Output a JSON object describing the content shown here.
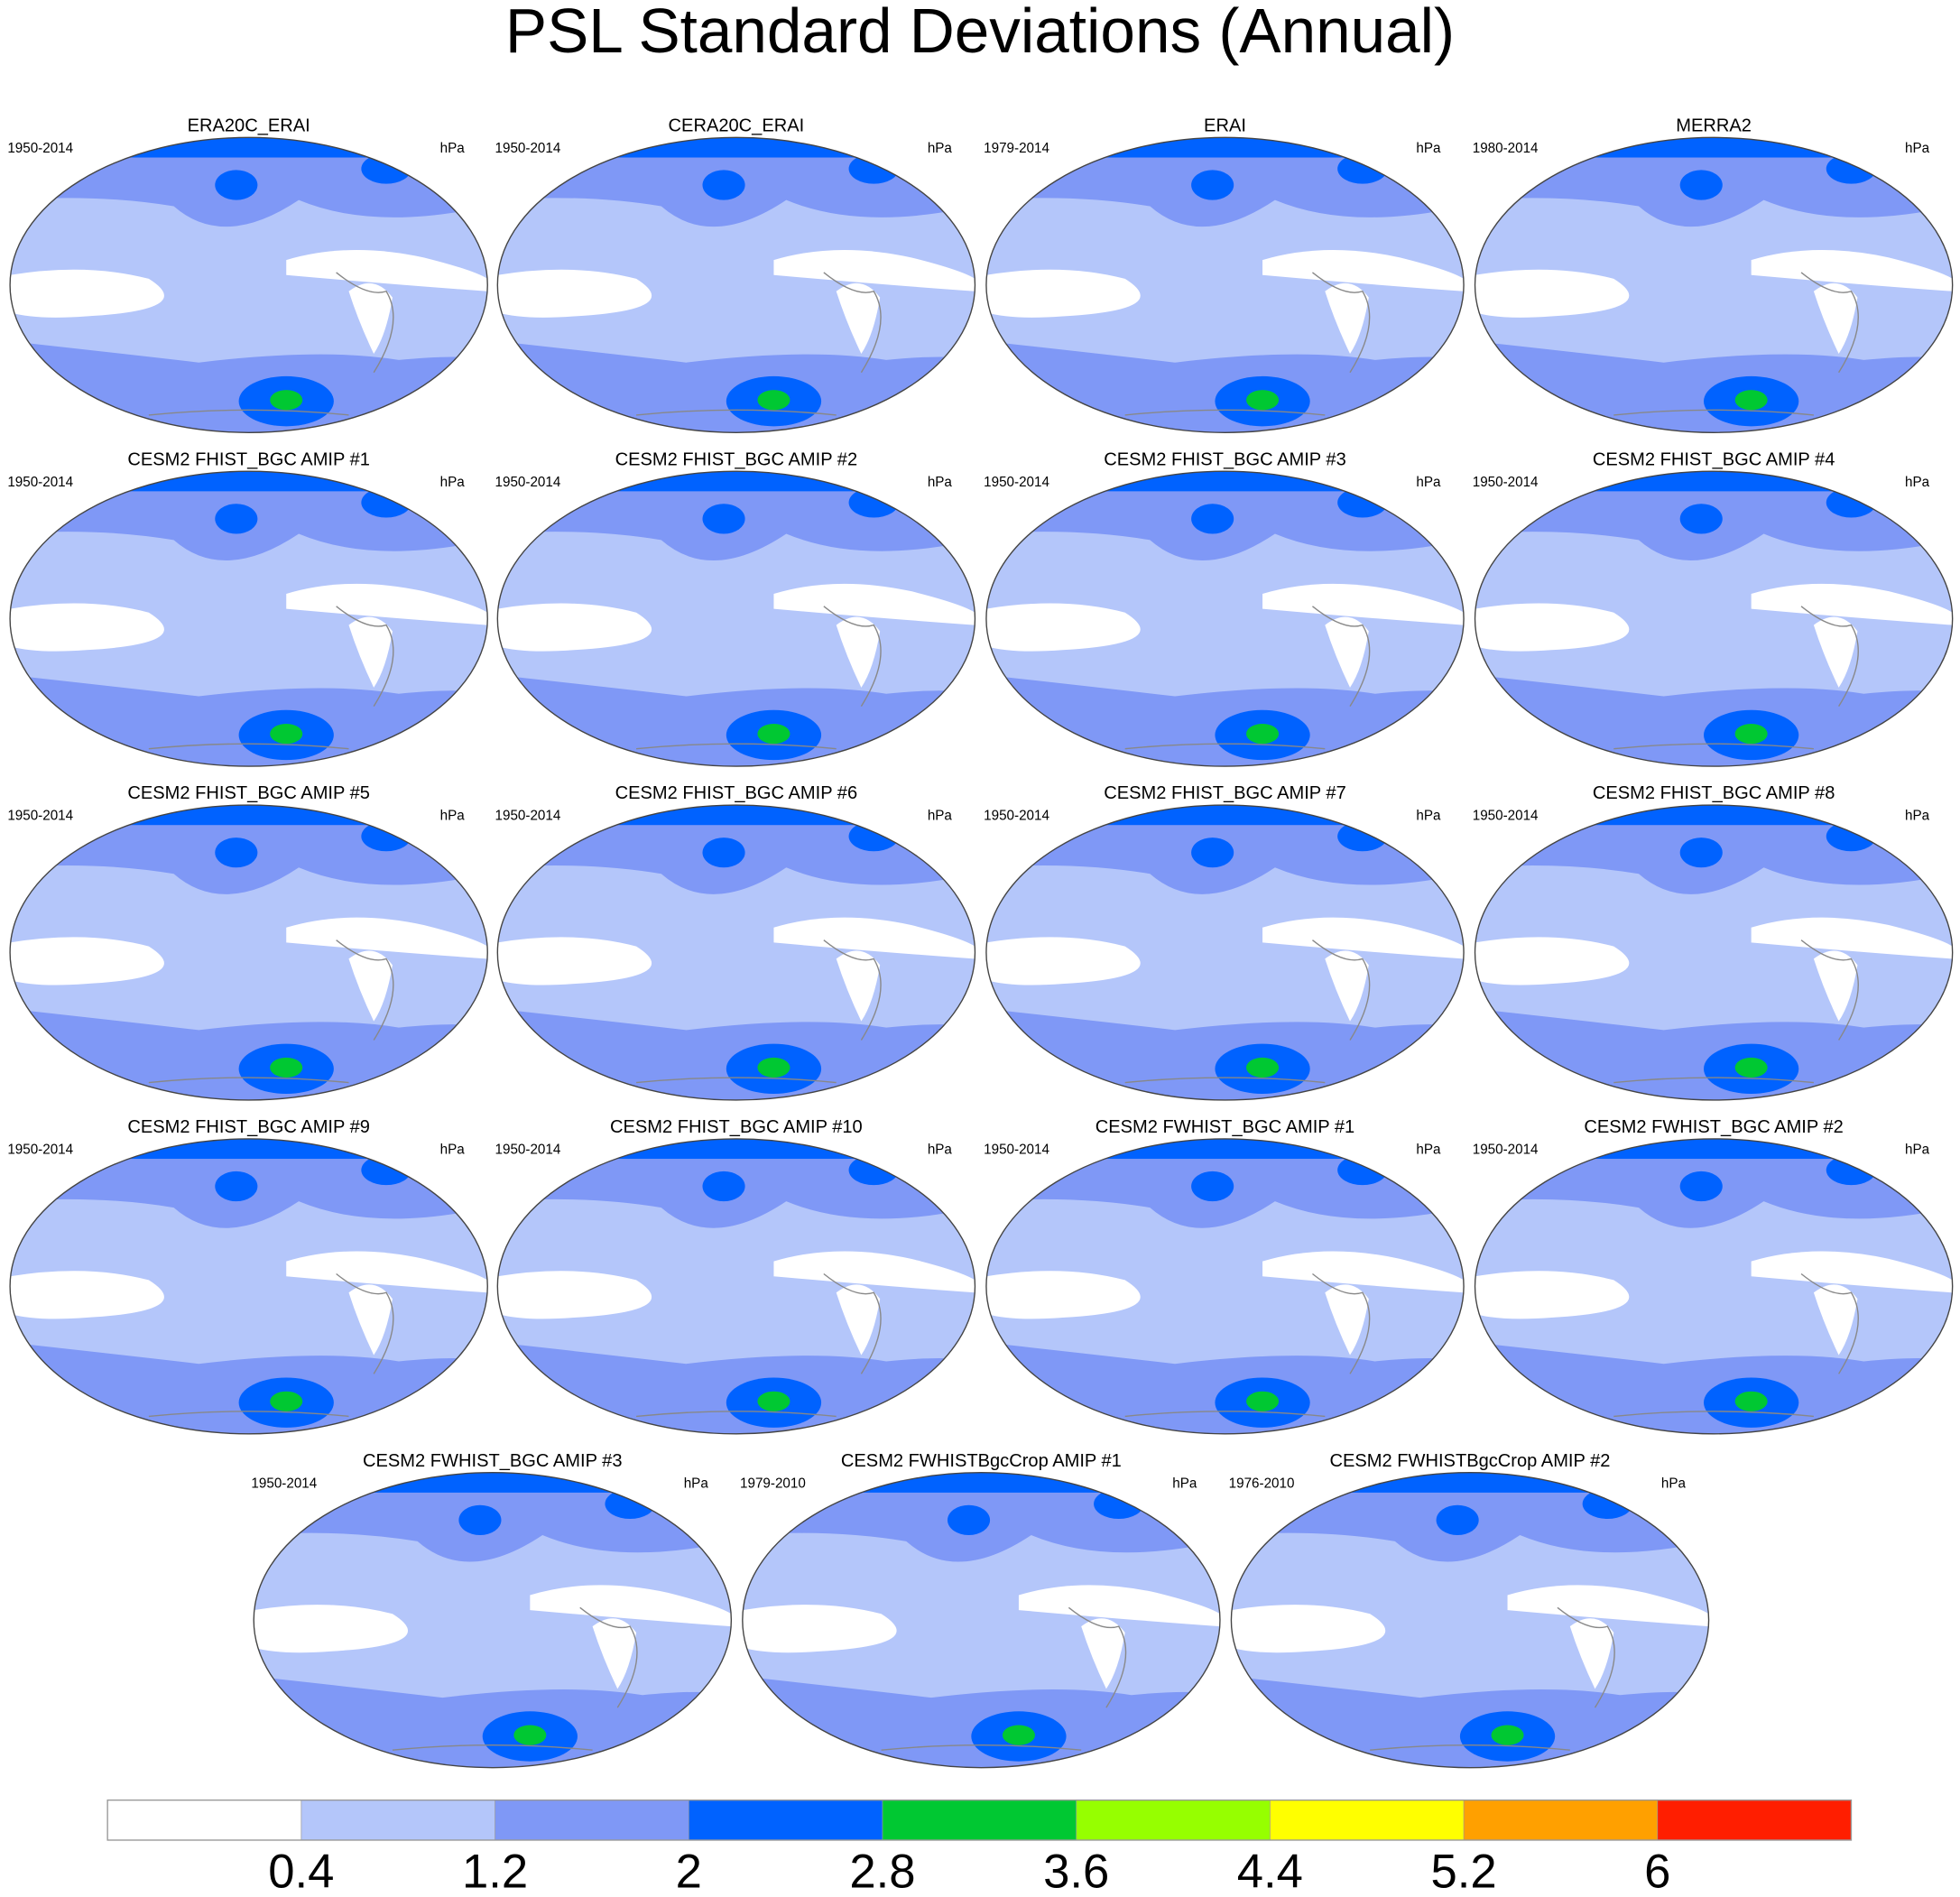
{
  "title": "PSL Standard Deviations (Annual)",
  "panels": [
    {
      "title": "ERA20C_ERAI",
      "period": "1950-2014",
      "units": "hPa"
    },
    {
      "title": "CERA20C_ERAI",
      "period": "1950-2014",
      "units": "hPa"
    },
    {
      "title": "ERAI",
      "period": "1979-2014",
      "units": "hPa"
    },
    {
      "title": "MERRA2",
      "period": "1980-2014",
      "units": "hPa"
    },
    {
      "title": "CESM2 FHIST_BGC AMIP #1",
      "period": "1950-2014",
      "units": "hPa"
    },
    {
      "title": "CESM2 FHIST_BGC AMIP #2",
      "period": "1950-2014",
      "units": "hPa"
    },
    {
      "title": "CESM2 FHIST_BGC AMIP #3",
      "period": "1950-2014",
      "units": "hPa"
    },
    {
      "title": "CESM2 FHIST_BGC AMIP #4",
      "period": "1950-2014",
      "units": "hPa"
    },
    {
      "title": "CESM2 FHIST_BGC AMIP #5",
      "period": "1950-2014",
      "units": "hPa"
    },
    {
      "title": "CESM2 FHIST_BGC AMIP #6",
      "period": "1950-2014",
      "units": "hPa"
    },
    {
      "title": "CESM2 FHIST_BGC AMIP #7",
      "period": "1950-2014",
      "units": "hPa"
    },
    {
      "title": "CESM2 FHIST_BGC AMIP #8",
      "period": "1950-2014",
      "units": "hPa"
    },
    {
      "title": "CESM2 FHIST_BGC AMIP #9",
      "period": "1950-2014",
      "units": "hPa"
    },
    {
      "title": "CESM2 FHIST_BGC AMIP #10",
      "period": "1950-2014",
      "units": "hPa"
    },
    {
      "title": "CESM2 FWHIST_BGC AMIP #1",
      "period": "1950-2014",
      "units": "hPa"
    },
    {
      "title": "CESM2 FWHIST_BGC AMIP #2",
      "period": "1950-2014",
      "units": "hPa"
    },
    {
      "title": "CESM2 FWHIST_BGC AMIP #3",
      "period": "1950-2014",
      "units": "hPa"
    },
    {
      "title": "CESM2 FWHISTBgcCrop AMIP #1",
      "period": "1979-2010",
      "units": "hPa"
    },
    {
      "title": "CESM2 FWHISTBgcCrop AMIP #2",
      "period": "1976-2010",
      "units": "hPa"
    }
  ],
  "colorbar": {
    "colors": [
      "#ffffff",
      "#b4c6fa",
      "#7f98f6",
      "#0062ff",
      "#00c832",
      "#96ff00",
      "#ffff00",
      "#ffa000",
      "#ff1e00"
    ],
    "ticks": [
      0.4,
      1.2,
      2,
      2.8,
      3.6,
      4.4,
      5.2,
      6
    ]
  }
}
